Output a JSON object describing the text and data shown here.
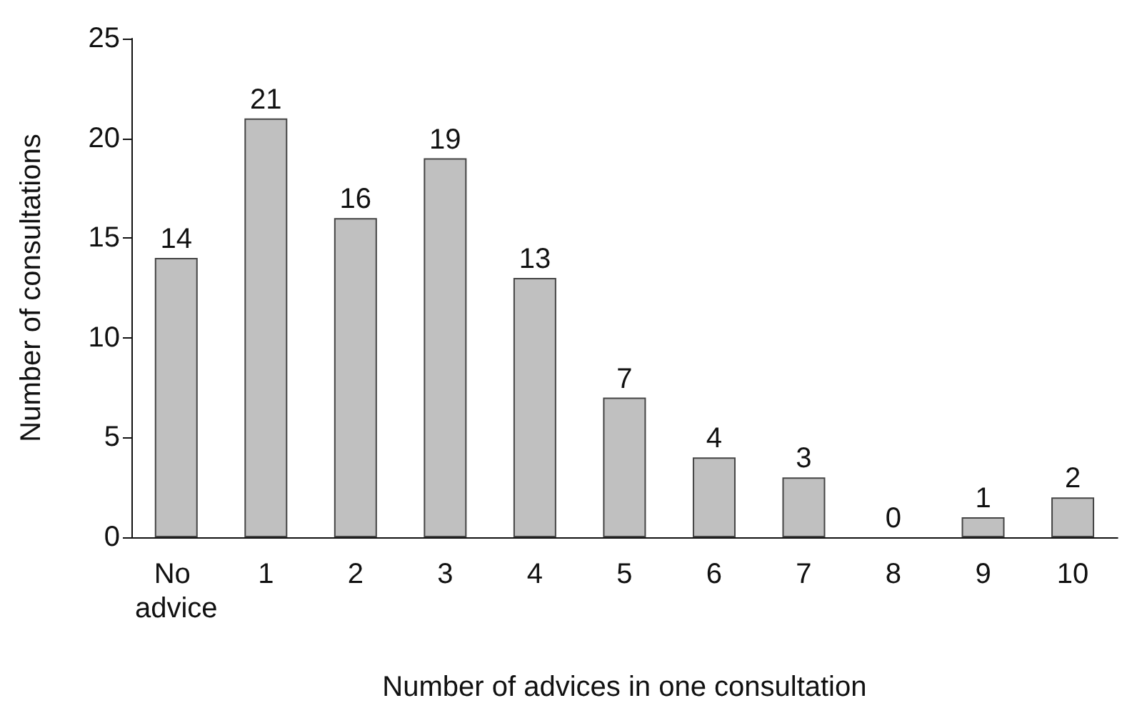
{
  "chart_data": {
    "type": "bar",
    "xlabel": "Number of advices in one consultation",
    "ylabel": "Number of consultations",
    "categories": [
      "No advice",
      "1",
      "2",
      "3",
      "4",
      "5",
      "6",
      "7",
      "8",
      "9",
      "10"
    ],
    "values": [
      14,
      21,
      16,
      19,
      13,
      7,
      4,
      3,
      0,
      1,
      2
    ],
    "color": "#c0c0c0",
    "ylim": [
      0,
      25
    ],
    "yticks": [
      0,
      5,
      10,
      15,
      20,
      25
    ],
    "grid": false,
    "data_labels": true
  }
}
